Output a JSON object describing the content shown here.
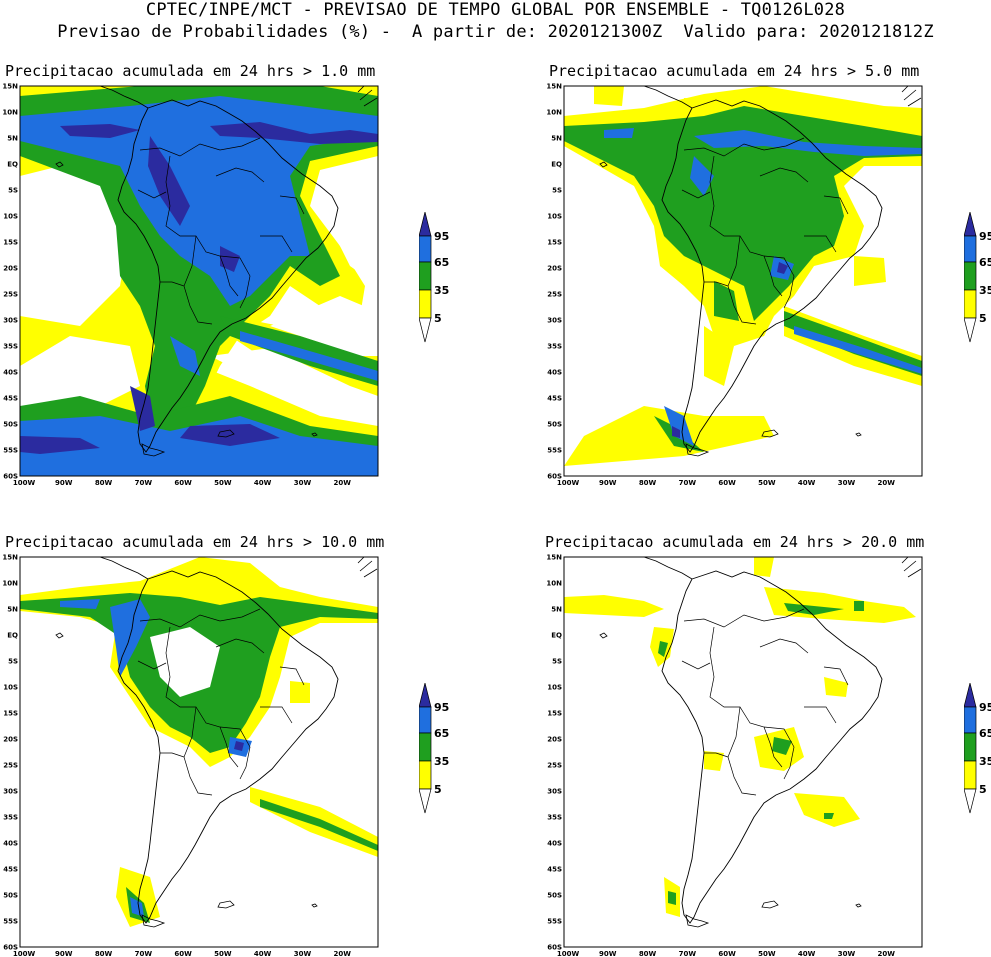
{
  "header": {
    "line1": "CPTEC/INPE/MCT - PREVISAO DE TEMPO GLOBAL POR ENSEMBLE - TQ0126L028",
    "line2": "Previsao de Probabilidades (%) -  A partir de: 2020121300Z  Valido para: 2020121812Z"
  },
  "colors": {
    "c5": "#ffff00",
    "c35": "#1f9f1f",
    "c65": "#1f6fdf",
    "c95": "#2b2b9f"
  },
  "axes": {
    "lat_labels": [
      "15N",
      "10N",
      "5N",
      "EQ",
      "5S",
      "10S",
      "15S",
      "20S",
      "25S",
      "30S",
      "35S",
      "40S",
      "45S",
      "50S",
      "55S",
      "60S"
    ],
    "lon_labels": [
      "100W",
      "90W",
      "80W",
      "70W",
      "60W",
      "50W",
      "40W",
      "30W",
      "20W"
    ]
  },
  "legend": {
    "levels": [
      "95",
      "65",
      "35",
      "5"
    ]
  },
  "panels": [
    {
      "id": "p1",
      "title": "Precipitacao acumulada em 24 hrs > 1.0 mm"
    },
    {
      "id": "p2",
      "title": "Precipitacao acumulada em 24 hrs > 5.0 mm"
    },
    {
      "id": "p3",
      "title": "Precipitacao acumulada em 24 hrs > 10.0 mm"
    },
    {
      "id": "p4",
      "title": "Precipitacao acumulada em 24 hrs > 20.0 mm"
    }
  ]
}
